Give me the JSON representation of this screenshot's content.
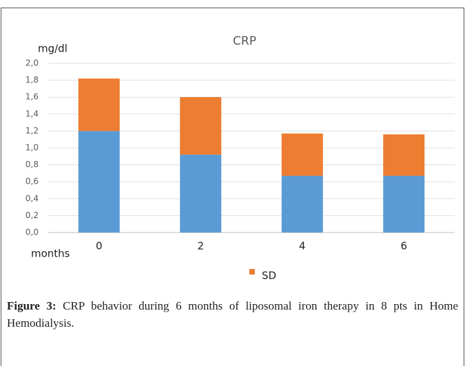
{
  "chart_data": {
    "type": "stacked_bar",
    "title": "CRP",
    "y_label": "mg/dl",
    "x_label": "months",
    "categories": [
      "0",
      "2",
      "4",
      "6"
    ],
    "series": [
      {
        "color": "#5b9bd5",
        "values": [
          1.2,
          0.92,
          0.67,
          0.67
        ]
      },
      {
        "name": "SD",
        "color": "#ed7d31",
        "values": [
          0.62,
          0.68,
          0.5,
          0.49
        ]
      }
    ],
    "ylim": [
      0,
      2
    ],
    "yticks": [
      {
        "value": 0,
        "label": "0,0"
      },
      {
        "value": 0.2,
        "label": "0,2"
      },
      {
        "value": 0.4,
        "label": "0,4"
      },
      {
        "value": 0.6,
        "label": "0,6"
      },
      {
        "value": 0.8,
        "label": "0,8"
      },
      {
        "value": 1,
        "label": "1,0"
      },
      {
        "value": 1.2,
        "label": "1,2"
      },
      {
        "value": 1.4,
        "label": "1,4"
      },
      {
        "value": 1.6,
        "label": "1,6"
      },
      {
        "value": 1.8,
        "label": "1,8"
      },
      {
        "value": 2,
        "label": "2,0"
      }
    ],
    "grid": true,
    "legend": "bottom"
  },
  "caption": {
    "label": "Figure 3:",
    "text": "CRP behavior during 6 months of liposomal iron therapy in 8 pts in Home Hemodialysis."
  }
}
